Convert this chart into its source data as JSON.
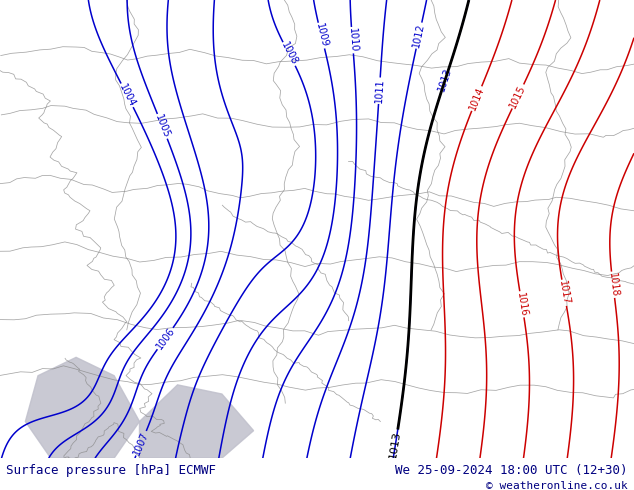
{
  "title_left": "Surface pressure [hPa] ECMWF",
  "title_right": "We 25-09-2024 18:00 UTC (12+30)",
  "copyright": "© weatheronline.co.uk",
  "bg_color": "#b0e87a",
  "sea_color": "#c0c0cc",
  "border_color": "#888888",
  "blue_contour_color": "#0000cc",
  "black_contour_color": "#000000",
  "red_contour_color": "#cc0000",
  "bottom_text_color": "#000080",
  "figsize": [
    6.34,
    4.9
  ],
  "dpi": 100
}
